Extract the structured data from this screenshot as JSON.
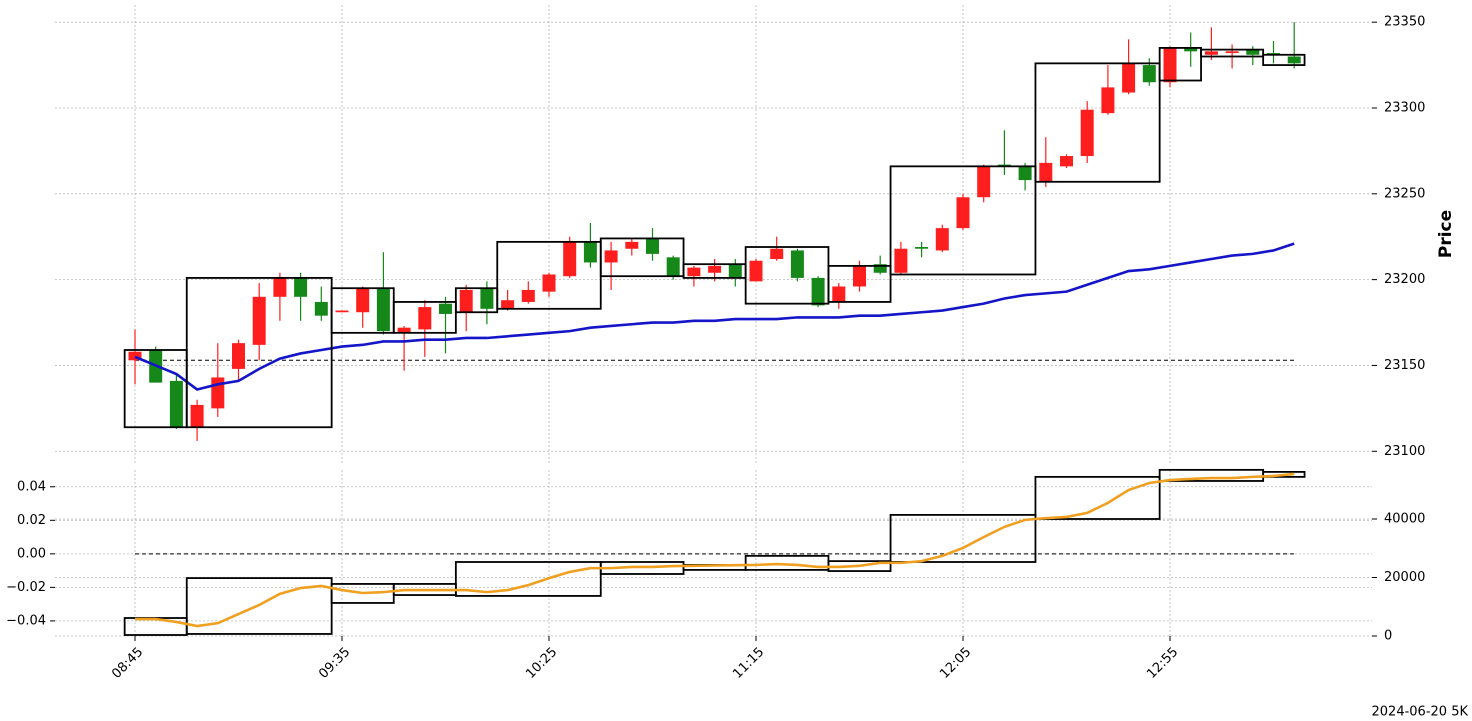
{
  "chart_data": [
    {
      "type": "candlestick",
      "ylabel": "Price",
      "categories": [
        "08:45",
        null,
        null,
        null,
        null,
        null,
        null,
        null,
        null,
        null,
        "09:35",
        null,
        null,
        null,
        null,
        null,
        null,
        null,
        null,
        null,
        "10:25",
        null,
        null,
        null,
        null,
        null,
        null,
        null,
        null,
        null,
        "11:15",
        null,
        null,
        null,
        null,
        null,
        null,
        null,
        null,
        null,
        "12:05",
        null,
        null,
        null,
        null,
        null,
        null,
        null,
        null,
        null,
        "12:55",
        null,
        null,
        null,
        null,
        null,
        null
      ],
      "open": [
        23153,
        23159,
        23141,
        23114,
        23125,
        23148,
        23162,
        23190,
        23201,
        23187,
        23181,
        23181,
        23195,
        23169,
        23171,
        23186,
        23181,
        23195,
        23183,
        23187,
        23193,
        23202,
        23222,
        23210,
        23218,
        23224,
        23213,
        23202,
        23204,
        23209,
        23199,
        23212,
        23217,
        23201,
        23187,
        23196,
        23209,
        23204,
        23219,
        23217,
        23230,
        23248,
        23267,
        23266,
        23257,
        23266,
        23272,
        23297,
        23309,
        23325,
        23315,
        23335,
        23331,
        23332,
        23334,
        23332,
        23330
      ],
      "high": [
        23171,
        23161,
        23145,
        23130,
        23163,
        23165,
        23198,
        23204,
        23204,
        23196,
        23182,
        23196,
        23216,
        23173,
        23188,
        23190,
        23197,
        23199,
        23194,
        23199,
        23204,
        23225,
        23233,
        23222,
        23224,
        23230,
        23214,
        23208,
        23212,
        23212,
        23212,
        23225,
        23218,
        23202,
        23198,
        23211,
        23214,
        23222,
        23222,
        23232,
        23250,
        23267,
        23287,
        23268,
        23283,
        23273,
        23304,
        23325,
        23340,
        23329,
        23336,
        23344,
        23347,
        23337,
        23336,
        23339,
        23350
      ],
      "low": [
        23139,
        23140,
        23113,
        23106,
        23120,
        23141,
        23153,
        23176,
        23176,
        23176,
        23181,
        23172,
        23168,
        23147,
        23155,
        23157,
        23170,
        23174,
        23182,
        23186,
        23190,
        23201,
        23207,
        23194,
        23214,
        23211,
        23200,
        23196,
        23199,
        23196,
        23199,
        23211,
        23199,
        23184,
        23183,
        23193,
        23203,
        23203,
        23213,
        23216,
        23229,
        23245,
        23261,
        23252,
        23254,
        23265,
        23268,
        23296,
        23308,
        23313,
        23312,
        23324,
        23328,
        23323,
        23325,
        23326,
        23323
      ],
      "close": [
        23158,
        23140,
        23114,
        23127,
        23143,
        23163,
        23190,
        23201,
        23190,
        23179,
        23182,
        23195,
        23170,
        23172,
        23184,
        23180,
        23194,
        23183,
        23188,
        23194,
        23203,
        23222,
        23210,
        23217,
        23222,
        23215,
        23202,
        23207,
        23208,
        23201,
        23211,
        23218,
        23201,
        23185,
        23196,
        23208,
        23204,
        23218,
        23218,
        23230,
        23248,
        23266,
        23266,
        23258,
        23268,
        23272,
        23299,
        23312,
        23326,
        23315,
        23335,
        23333,
        23333,
        23333,
        23331,
        23331,
        23326
      ],
      "up_color": "#ff1e1e",
      "down_color": "#16881a",
      "ma": {
        "color": "#1414c8",
        "values": [
          23155,
          23150,
          23145,
          23136,
          23139,
          23141,
          23148,
          23154,
          23157,
          23159,
          23161,
          23162,
          23164,
          23164,
          23165,
          23165,
          23166,
          23166,
          23167,
          23168,
          23169,
          23170,
          23172,
          23173,
          23174,
          23175,
          23175,
          23176,
          23176,
          23177,
          23177,
          23177,
          23178,
          23178,
          23178,
          23179,
          23179,
          23180,
          23181,
          23182,
          23184,
          23186,
          23189,
          23191,
          23192,
          23193,
          23197,
          23201,
          23205,
          23206,
          23208,
          23210,
          23212,
          23214,
          23215,
          23217,
          23221
        ]
      },
      "hline": 23153,
      "boxes": [
        {
          "start": 0,
          "end": 2,
          "high": 23159,
          "low": 23114
        },
        {
          "start": 3,
          "end": 9,
          "high": 23201,
          "low": 23114
        },
        {
          "start": 10,
          "end": 12,
          "high": 23195,
          "low": 23169
        },
        {
          "start": 13,
          "end": 15,
          "high": 23187,
          "low": 23169
        },
        {
          "start": 16,
          "end": 17,
          "high": 23195,
          "low": 23181
        },
        {
          "start": 18,
          "end": 22,
          "high": 23222,
          "low": 23183
        },
        {
          "start": 23,
          "end": 26,
          "high": 23224,
          "low": 23202
        },
        {
          "start": 27,
          "end": 29,
          "high": 23209,
          "low": 23201
        },
        {
          "start": 30,
          "end": 33,
          "high": 23219,
          "low": 23186
        },
        {
          "start": 34,
          "end": 36,
          "high": 23208,
          "low": 23187
        },
        {
          "start": 37,
          "end": 43,
          "high": 23266,
          "low": 23203
        },
        {
          "start": 44,
          "end": 49,
          "high": 23326,
          "low": 23257
        },
        {
          "start": 50,
          "end": 51,
          "high": 23335,
          "low": 23316
        },
        {
          "start": 52,
          "end": 54,
          "high": 23334,
          "low": 23330
        },
        {
          "start": 55,
          "end": 56,
          "high": 23331,
          "low": 23325
        }
      ],
      "ylim": [
        23092,
        23360
      ],
      "yticks": [
        23100,
        23150,
        23200,
        23250,
        23300,
        23350
      ],
      "grid": true
    },
    {
      "type": "line",
      "ylim": [
        -0.049,
        0.05
      ],
      "yticks": [
        {
          "value": -0.04,
          "label": "−0.04"
        },
        {
          "value": -0.02,
          "label": "−0.02"
        },
        {
          "value": 0,
          "label": "0.00"
        },
        0.02,
        0.04
      ],
      "y2lim": [
        0,
        56750
      ],
      "y2ticks": [
        0,
        20000,
        40000
      ],
      "hline": 0,
      "series": [
        {
          "color": "#f0a020",
          "axis": "y2",
          "values": [
            5800,
            5800,
            4800,
            3400,
            4400,
            7500,
            10600,
            14400,
            16400,
            17100,
            15700,
            14700,
            15000,
            15700,
            15700,
            15700,
            15700,
            15000,
            15700,
            17400,
            19800,
            21900,
            23200,
            23200,
            23600,
            23600,
            23900,
            24000,
            24100,
            24200,
            24300,
            24600,
            24300,
            23600,
            23600,
            24000,
            25000,
            25000,
            25600,
            27400,
            30100,
            33800,
            37300,
            39700,
            40300,
            40700,
            42100,
            45500,
            49900,
            52300,
            53300,
            53700,
            54000,
            54000,
            54400,
            54700,
            55400
          ]
        }
      ],
      "boxes": [
        {
          "start": 0,
          "end": 2,
          "high": 6150,
          "low": 340
        },
        {
          "start": 3,
          "end": 9,
          "high": 19800,
          "low": 700
        },
        {
          "start": 10,
          "end": 12,
          "high": 17800,
          "low": 11300
        },
        {
          "start": 13,
          "end": 15,
          "high": 17800,
          "low": 14000
        },
        {
          "start": 16,
          "end": 22,
          "high": 25300,
          "low": 13700
        },
        {
          "start": 23,
          "end": 26,
          "high": 25300,
          "low": 21200
        },
        {
          "start": 27,
          "end": 29,
          "high": 24300,
          "low": 22600
        },
        {
          "start": 30,
          "end": 33,
          "high": 27400,
          "low": 22600
        },
        {
          "start": 34,
          "end": 36,
          "high": 25600,
          "low": 22200
        },
        {
          "start": 37,
          "end": 43,
          "high": 41400,
          "low": 25300
        },
        {
          "start": 44,
          "end": 49,
          "high": 54400,
          "low": 40000
        },
        {
          "start": 50,
          "end": 54,
          "high": 56800,
          "low": 53000
        },
        {
          "start": 55,
          "end": 56,
          "high": 56100,
          "low": 54400
        }
      ],
      "grid": true
    }
  ],
  "footer": "2024-06-20 5K"
}
